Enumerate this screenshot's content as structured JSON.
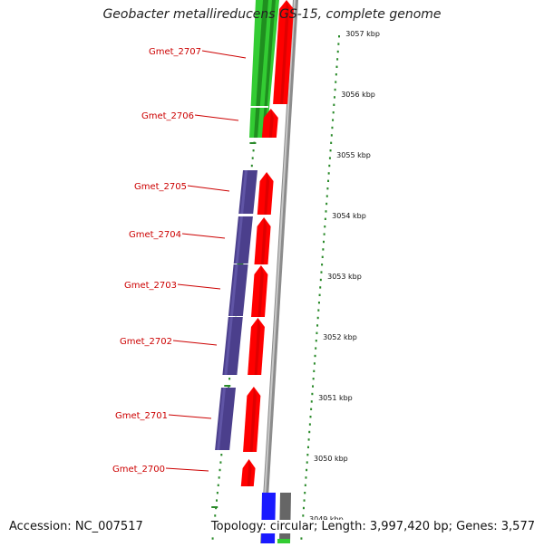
{
  "title": "Geobacter metallireducens GS-15, complete genome",
  "footer": {
    "accession": "Accession: NC_007517",
    "summary": "Topology: circular; Length: 3,997,420 bp; Genes: 3,577"
  },
  "colors": {
    "forward_cds": "#ff0000",
    "reverse_cds": "#4b3f8c",
    "green_feature": "#33cc33",
    "blue_feature": "#1a1aff",
    "grey_feature": "#666666",
    "backbone": "#8c8c8c",
    "tick_green": "#2a8a2a",
    "gene_label": "#cc0000"
  },
  "scale_labels": [
    "3057 kbp",
    "3056 kbp",
    "3055 kbp",
    "3054 kbp",
    "3053 kbp",
    "3052 kbp",
    "3051 kbp",
    "3050 kbp",
    "3049 kbp"
  ],
  "gene_labels": [
    "Gmet_2707",
    "Gmet_2706",
    "Gmet_2705",
    "Gmet_2704",
    "Gmet_2703",
    "Gmet_2702",
    "Gmet_2701",
    "Gmet_2700"
  ]
}
